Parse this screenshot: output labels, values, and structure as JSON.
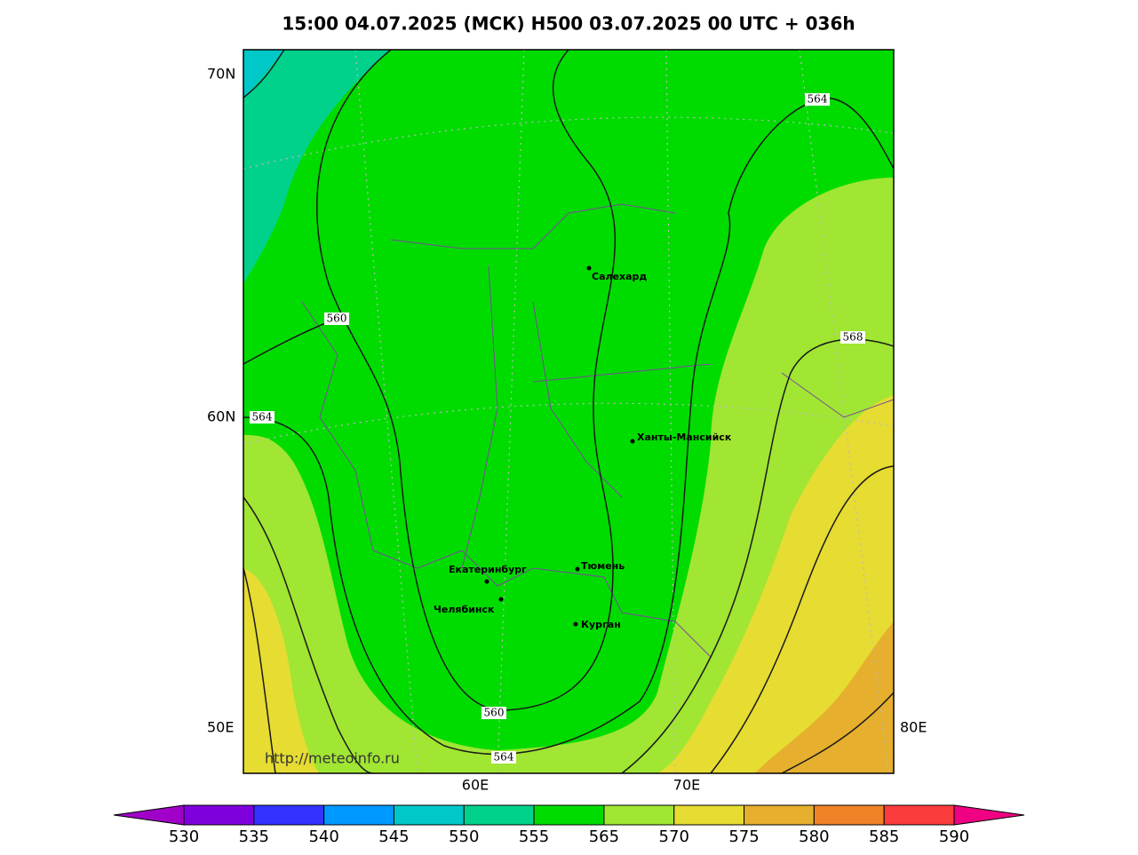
{
  "title": "15:00 04.07.2025 (МСК) H500  03.07.2025 00 UTC + 036h",
  "map": {
    "lat_labels": [
      "70N",
      "60N"
    ],
    "lon_labels": [
      "50E",
      "60E",
      "70E",
      "80E"
    ],
    "cities": [
      "Салехард",
      "Ханты-Мансийск",
      "Тюмень",
      "Екатеринбург",
      "Челябинск",
      "Курган"
    ],
    "contour_labels": [
      "564",
      "560",
      "568",
      "564",
      "560",
      "564"
    ],
    "watermark": "http://meteoinfo.ru"
  },
  "colorbar": {
    "levels": [
      530,
      535,
      540,
      545,
      550,
      555,
      565,
      570,
      575,
      580,
      585,
      590
    ],
    "colors": [
      "#7f00dc",
      "#3333ff",
      "#0099ff",
      "#00c8c8",
      "#00d28c",
      "#00dc00",
      "#a0e632",
      "#e6dc32",
      "#e6af2d",
      "#f08228",
      "#fa3c3c"
    ],
    "under_color": "#a000c8",
    "over_color": "#f00082"
  }
}
